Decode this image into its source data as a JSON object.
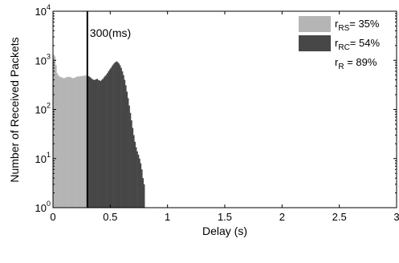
{
  "chart_data": {
    "type": "bar",
    "xlabel": "Delay (s)",
    "ylabel": "Number of Received Packets",
    "xlim": [
      0,
      3
    ],
    "ylim": [
      1,
      10000
    ],
    "yscale": "log",
    "x_ticks": [
      "0",
      "0.5",
      "1",
      "1.5",
      "2",
      "2.5",
      "3"
    ],
    "y_ticks": [
      {
        "value": 1,
        "base": "10",
        "exp": "0"
      },
      {
        "value": 10,
        "base": "10",
        "exp": "1"
      },
      {
        "value": 100,
        "base": "10",
        "exp": "2"
      },
      {
        "value": 1000,
        "base": "10",
        "exp": "3"
      },
      {
        "value": 10000,
        "base": "10",
        "exp": "4"
      }
    ],
    "bin_width": 0.01,
    "bins_start": 0,
    "values": [
      1300,
      1200,
      800,
      550,
      500,
      470,
      460,
      450,
      440,
      430,
      440,
      450,
      460,
      460,
      460,
      450,
      440,
      430,
      440,
      450,
      460,
      470,
      470,
      470,
      480,
      480,
      480,
      490,
      490,
      490,
      480,
      470,
      450,
      430,
      410,
      400,
      400,
      410,
      420,
      400,
      390,
      380,
      400,
      420,
      450,
      480,
      510,
      550,
      600,
      650,
      700,
      760,
      820,
      880,
      920,
      950,
      920,
      860,
      790,
      700,
      600,
      500,
      400,
      310,
      230,
      170,
      120,
      85,
      60,
      42,
      30,
      22,
      17,
      14,
      12,
      10,
      8,
      6,
      4,
      3
    ],
    "series": [
      {
        "name": "RS",
        "range": [
          0,
          0.3
        ],
        "color": "#b5b5b5"
      },
      {
        "name": "RC",
        "range": [
          0.3,
          0.94
        ],
        "color": "#474747"
      }
    ],
    "legend": {
      "placement": "top-right",
      "items": [
        {
          "sym": "r",
          "sub": "RS",
          "text": "= 35%",
          "swatch": "#b5b5b5"
        },
        {
          "sym": "r",
          "sub": "RC",
          "text": "= 54%",
          "swatch": "#474747"
        },
        {
          "sym": "r",
          "sub": "R",
          "text": " = 89%",
          "swatch": ""
        }
      ]
    },
    "vline": {
      "x": 0.3,
      "label": "300(ms)"
    }
  }
}
